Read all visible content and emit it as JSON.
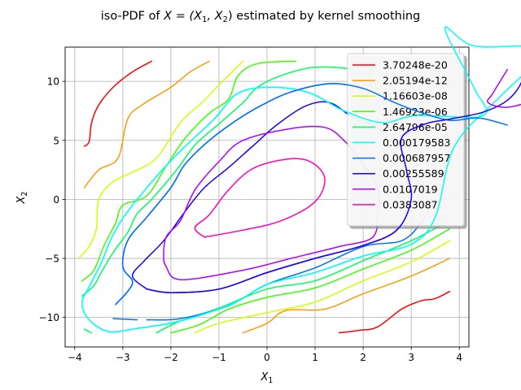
{
  "chart_data": {
    "type": "contour",
    "title_text": "iso-PDF of ",
    "title_math": "X = (X",
    "title_math_sub1": "1",
    "title_math_mid": ", X",
    "title_math_sub2": "2",
    "title_math_end": ")",
    "title_suffix": " estimated by kernel smoothing",
    "xlabel": "X",
    "xlabel_sub": "1",
    "ylabel": "X",
    "ylabel_sub": "2",
    "xlim": [
      -4.2,
      4.2
    ],
    "ylim": [
      -12.5,
      12.9
    ],
    "x_ticks": [
      -4,
      -3,
      -2,
      -1,
      0,
      1,
      2,
      3,
      4
    ],
    "y_ticks": [
      -10,
      -5,
      0,
      5,
      10
    ],
    "grid": true,
    "legend_position": "top-right",
    "legend_title": "",
    "levels": [
      {
        "label": "3.70248e-20",
        "color": "#ff0000"
      },
      {
        "label": "2.05194e-12",
        "color": "#ff9a00"
      },
      {
        "label": "1.16603e-08",
        "color": "#d2ff00"
      },
      {
        "label": "1.46923e-06",
        "color": "#3aff00"
      },
      {
        "label": "2.64796e-05",
        "color": "#00ff5c"
      },
      {
        "label": "0.000179583",
        "color": "#00fff4"
      },
      {
        "label": "0.000687957",
        "color": "#0070ff"
      },
      {
        "label": "0.00255589",
        "color": "#1800ff"
      },
      {
        "label": "0.0107019",
        "color": "#b000ff"
      },
      {
        "label": "0.0383087",
        "color": "#ff00b8"
      }
    ],
    "contours": [
      {
        "level": 0,
        "segments": [
          [
            [
              -3.8,
              4.5
            ],
            [
              -3.7,
              4.9
            ],
            [
              -3.65,
              6.5
            ],
            [
              -3.5,
              8
            ],
            [
              -3.2,
              9.5
            ],
            [
              -2.8,
              10.8
            ],
            [
              -2.4,
              11.7
            ]
          ],
          [
            [
              1.5,
              -11.3
            ],
            [
              1.9,
              -11.1
            ],
            [
              2.3,
              -10.8
            ],
            [
              2.8,
              -9.3
            ],
            [
              3.2,
              -8.6
            ],
            [
              3.5,
              -8.4
            ],
            [
              3.8,
              -7.8
            ]
          ]
        ]
      },
      {
        "level": 1,
        "segments": [
          [
            [
              -3.8,
              1
            ],
            [
              -3.5,
              2.5
            ],
            [
              -3.1,
              3.5
            ],
            [
              -2.9,
              6.8
            ],
            [
              -2.6,
              8
            ],
            [
              -2,
              9.5
            ],
            [
              -1.6,
              10.8
            ],
            [
              -1.2,
              11.7
            ]
          ],
          [
            [
              -0.5,
              -11.3
            ],
            [
              0,
              -10.5
            ],
            [
              0.4,
              -9.4
            ],
            [
              1.2,
              -9.3
            ],
            [
              2,
              -8
            ],
            [
              3,
              -6.5
            ],
            [
              3.8,
              -5
            ]
          ]
        ]
      },
      {
        "level": 2,
        "segments": [
          [
            [
              -3.9,
              -4.9
            ],
            [
              -3.7,
              -4
            ],
            [
              -3.55,
              -2.5
            ],
            [
              -3.5,
              0
            ],
            [
              -3.2,
              1.5
            ],
            [
              -2.8,
              2.3
            ],
            [
              -2.3,
              3.5
            ],
            [
              -1.8,
              6.5
            ],
            [
              -1.3,
              8.4
            ],
            [
              -1,
              9.7
            ],
            [
              -0.5,
              11.7
            ]
          ],
          [
            [
              -1.5,
              -11.3
            ],
            [
              -1,
              -10.5
            ],
            [
              0,
              -9.6
            ],
            [
              1,
              -8.7
            ],
            [
              2,
              -6.9
            ],
            [
              3,
              -5.3
            ],
            [
              3.8,
              -3.5
            ]
          ]
        ]
      },
      {
        "level": 3,
        "segments": [
          [
            [
              -3.85,
              -6.9
            ],
            [
              -3.6,
              -6
            ],
            [
              -3.4,
              -4
            ],
            [
              -3.15,
              -2
            ],
            [
              -3,
              -0.5
            ],
            [
              -2.5,
              0.3
            ],
            [
              -2.1,
              2.8
            ],
            [
              -1.7,
              5.2
            ],
            [
              -1.2,
              7.3
            ],
            [
              -0.8,
              8.5
            ],
            [
              -0.6,
              10.5
            ],
            [
              -0.2,
              11.5
            ],
            [
              0.6,
              11.7
            ]
          ],
          [
            [
              -2,
              -11.3
            ],
            [
              -1.4,
              -10.6
            ],
            [
              -0.8,
              -9.3
            ],
            [
              0,
              -8.3
            ],
            [
              1,
              -7.5
            ],
            [
              2,
              -5.9
            ],
            [
              3,
              -4.3
            ],
            [
              3.8,
              -2.5
            ]
          ]
        ]
      },
      {
        "level": 4,
        "segments": [
          [
            [
              -3.85,
              -8.2
            ],
            [
              -3.6,
              -7.3
            ],
            [
              -3.45,
              -6.2
            ],
            [
              -3.2,
              -4.5
            ],
            [
              -2.9,
              -2.8
            ],
            [
              -2.7,
              -1.2
            ],
            [
              -2.4,
              0
            ],
            [
              -1.9,
              2.4
            ],
            [
              -1.5,
              4.6
            ],
            [
              -1,
              6.4
            ],
            [
              -0.5,
              8.2
            ],
            [
              -0.2,
              9.5
            ],
            [
              0.3,
              10.5
            ],
            [
              1,
              11.2
            ],
            [
              1.8,
              11
            ],
            [
              2.2,
              10.3
            ],
            [
              2.3,
              9.2
            ],
            [
              2.7,
              8.2
            ],
            [
              3.2,
              7.4
            ],
            [
              3.8,
              6.7
            ]
          ],
          [
            [
              -3.8,
              -11
            ],
            [
              -3.65,
              -11.3
            ]
          ],
          [
            [
              -2.3,
              -11.3
            ],
            [
              -1.8,
              -10.3
            ],
            [
              -1,
              -9.2
            ],
            [
              0,
              -7.6
            ],
            [
              1,
              -6.9
            ],
            [
              2,
              -5.2
            ],
            [
              3,
              -3.5
            ],
            [
              3.8,
              -1.8
            ]
          ]
        ]
      },
      {
        "level": 5,
        "segments": [
          [
            [
              -2.8,
              -11
            ],
            [
              -1.8,
              -10.3
            ],
            [
              -0.7,
              -8.8
            ],
            [
              0,
              -7.2
            ],
            [
              1,
              -6.2
            ],
            [
              2,
              -4.8
            ],
            [
              3,
              -3.8
            ],
            [
              3.5,
              -1.5
            ],
            [
              3.9,
              4.5
            ],
            [
              4.8,
              8.5
            ],
            [
              5.5,
              11.2
            ],
            [
              5.8,
              12.5
            ],
            [
              5.5,
              13
            ],
            [
              4.3,
              13
            ],
            [
              3.7,
              14.5
            ],
            [
              4.3,
              9.5
            ],
            [
              4.5,
              7.1
            ],
            [
              3.1,
              7.1
            ],
            [
              2.4,
              6.5
            ],
            [
              1.6,
              7.5
            ],
            [
              0.9,
              9
            ],
            [
              0.1,
              9.5
            ],
            [
              -0.6,
              9
            ],
            [
              -1.1,
              6.8
            ],
            [
              -1.7,
              4.5
            ],
            [
              -2.2,
              2.4
            ],
            [
              -2.7,
              0
            ],
            [
              -3,
              -1.6
            ],
            [
              -3.25,
              -3.4
            ],
            [
              -3.45,
              -5.4
            ],
            [
              -3.7,
              -7.4
            ],
            [
              -3.85,
              -8.8
            ],
            [
              -3.7,
              -10.2
            ],
            [
              -3.3,
              -11.2
            ],
            [
              -2.8,
              -11
            ]
          ]
        ]
      },
      {
        "level": 6,
        "segments": [
          [
            [
              -3.15,
              -8.9
            ],
            [
              -2.9,
              -7.8
            ],
            [
              -2.8,
              -6.9
            ],
            [
              -3,
              -5.7
            ],
            [
              -2.9,
              -3.5
            ],
            [
              -2.5,
              -1.5
            ],
            [
              -2,
              1
            ],
            [
              -1.7,
              3
            ],
            [
              -1.2,
              5
            ],
            [
              -0.6,
              6.8
            ],
            [
              -0.1,
              8
            ],
            [
              0.5,
              9.1
            ],
            [
              1.3,
              9.8
            ],
            [
              2,
              9.4
            ],
            [
              2.6,
              8.3
            ],
            [
              3.1,
              7.5
            ],
            [
              3.8,
              6.7
            ],
            [
              4.4,
              6.9
            ],
            [
              5,
              6.3
            ]
          ],
          [
            [
              -2.5,
              -10.2
            ],
            [
              -1.8,
              -10.1
            ],
            [
              -0.8,
              -9
            ],
            [
              0,
              -7.2
            ],
            [
              1,
              -5.8
            ],
            [
              2,
              -4
            ],
            [
              2.8,
              -3.5
            ],
            [
              3.2,
              -2
            ],
            [
              3.5,
              0
            ]
          ],
          [
            [
              -3.2,
              -10.1
            ],
            [
              -2.7,
              -10.2
            ]
          ]
        ]
      },
      {
        "level": 7,
        "segments": [
          [
            [
              -2.5,
              -7.6
            ],
            [
              -2,
              -7.9
            ],
            [
              -1,
              -7.6
            ],
            [
              0,
              -6.2
            ],
            [
              1,
              -5
            ],
            [
              2,
              -3.9
            ],
            [
              2.7,
              -2.6
            ],
            [
              3,
              0
            ],
            [
              2.9,
              2.5
            ],
            [
              2.8,
              5.2
            ],
            [
              3.3,
              6.4
            ],
            [
              3.8,
              6.8
            ],
            [
              4.5,
              7.4
            ],
            [
              5,
              8.4
            ],
            [
              5.3,
              10
            ],
            [
              5.4,
              12.5
            ]
          ],
          [
            [
              -2.5,
              -7.6
            ],
            [
              -2.8,
              -6.5
            ],
            [
              -2.55,
              -5.2
            ],
            [
              -2.15,
              -3.5
            ],
            [
              -1.7,
              -1
            ],
            [
              -1.3,
              1
            ],
            [
              -0.8,
              2.7
            ],
            [
              -0.3,
              4.5
            ],
            [
              0.2,
              6.3
            ],
            [
              0.8,
              7.9
            ],
            [
              1.3,
              8.2
            ],
            [
              1.8,
              6.9
            ],
            [
              2.2,
              6.3
            ],
            [
              2.5,
              5.5
            ]
          ]
        ]
      },
      {
        "level": 8,
        "segments": [
          [
            [
              -2.1,
              -5.7
            ],
            [
              -1.8,
              -6.8
            ],
            [
              -0.5,
              -6
            ],
            [
              0.5,
              -5
            ],
            [
              1.5,
              -4
            ],
            [
              2.2,
              -3.2
            ],
            [
              2.3,
              -1
            ],
            [
              2.3,
              1
            ],
            [
              2,
              3
            ],
            [
              1.6,
              5
            ],
            [
              1.2,
              6.1
            ],
            [
              0.5,
              6
            ],
            [
              -0.5,
              5
            ],
            [
              -1,
              3.2
            ],
            [
              -1.5,
              0.8
            ],
            [
              -1.8,
              -1.8
            ],
            [
              -2.1,
              -3.2
            ],
            [
              -2.15,
              -5
            ],
            [
              -2.1,
              -5.7
            ]
          ],
          [
            [
              5,
              11
            ],
            [
              4.7,
              9
            ],
            [
              4.6,
              8.2
            ],
            [
              5,
              7.8
            ],
            [
              5.6,
              8.4
            ],
            [
              6.2,
              8.9
            ]
          ]
        ]
      },
      {
        "level": 9,
        "segments": [
          [
            [
              -1.3,
              -3.2
            ],
            [
              -0.5,
              -2.6
            ],
            [
              0.3,
              -1.8
            ],
            [
              1,
              -0.2
            ],
            [
              1.2,
              1.8
            ],
            [
              0.9,
              3.2
            ],
            [
              0.4,
              3.4
            ],
            [
              -0.3,
              2.6
            ],
            [
              -0.8,
              0.8
            ],
            [
              -1.2,
              -1.3
            ],
            [
              -1.5,
              -2.4
            ],
            [
              -1.3,
              -3.2
            ]
          ]
        ]
      }
    ]
  }
}
